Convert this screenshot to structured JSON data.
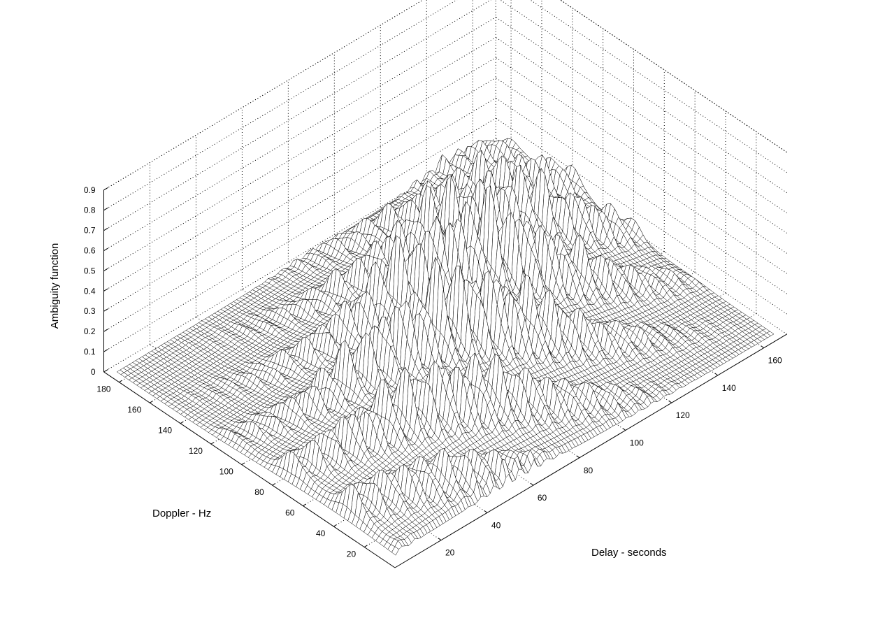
{
  "chart_data": {
    "type": "surface",
    "zlabel": "Ambiguity function",
    "xlabel": "Delay - seconds",
    "ylabel": "Doppler - Hz",
    "z_ticks": [
      "0",
      "0.1",
      "0.2",
      "0.3",
      "0.4",
      "0.5",
      "0.6",
      "0.7",
      "0.8",
      "0.9"
    ],
    "x_ticks": [
      "20",
      "40",
      "60",
      "80",
      "100",
      "120",
      "140",
      "160"
    ],
    "y_ticks": [
      "20",
      "40",
      "60",
      "80",
      "100",
      "120",
      "140",
      "160",
      "180"
    ],
    "xlim": [
      0,
      170
    ],
    "ylim": [
      0,
      190
    ],
    "zlim": [
      0,
      0.9
    ],
    "grid": true,
    "colors": {
      "mesh_edge": "#000000",
      "mesh_face": "#ffffff",
      "grid": "#000000"
    },
    "peak_value": 0.76,
    "peak_near": {
      "delay": 85,
      "doppler": 95
    }
  }
}
